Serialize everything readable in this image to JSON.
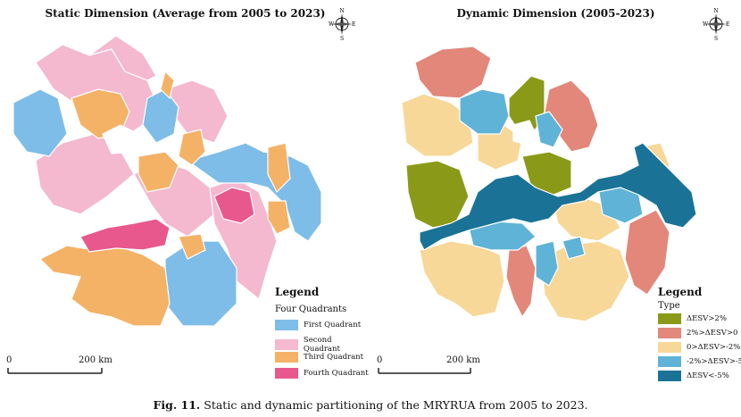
{
  "left_map": {
    "title": "Static Dimension (Average from 2005 to 2023)",
    "legend_title": "Legend",
    "legend_subtitle": "Four Quadrants",
    "legend_items": [
      {
        "label": "First Quadrant",
        "color": "#7dbde8"
      },
      {
        "label": "Second Quadrant",
        "color": "#f4b8cf"
      },
      {
        "label": "Third Quadrant",
        "color": "#f4b266"
      },
      {
        "label": "Fourth Quadrant",
        "color": "#e8588c"
      }
    ],
    "scale_zero": "0",
    "scale_label": "200 km"
  },
  "right_map": {
    "title": "Dynamic Dimension (2005-2023)",
    "legend_title": "Legend",
    "legend_subtitle": "Type",
    "legend_items": [
      {
        "label": "ΔESV>2%",
        "color": "#8a9a18"
      },
      {
        "label": "2%>ΔESV>0",
        "color": "#e2877a"
      },
      {
        "label": "0>ΔESV>-2%",
        "color": "#f7d898"
      },
      {
        "label": "-2%>ΔESV>-5%",
        "color": "#5fb3d6"
      },
      {
        "label": "ΔESV<-5%",
        "color": "#1a7397"
      }
    ],
    "scale_zero": "0",
    "scale_label": "200 km"
  },
  "compass": {
    "n": "N",
    "s": "S",
    "e": "E",
    "w": "W"
  },
  "caption": {
    "label": "Fig. 11.",
    "text": " Static and dynamic partitioning of the MRYRUA from 2005 to 2023."
  }
}
